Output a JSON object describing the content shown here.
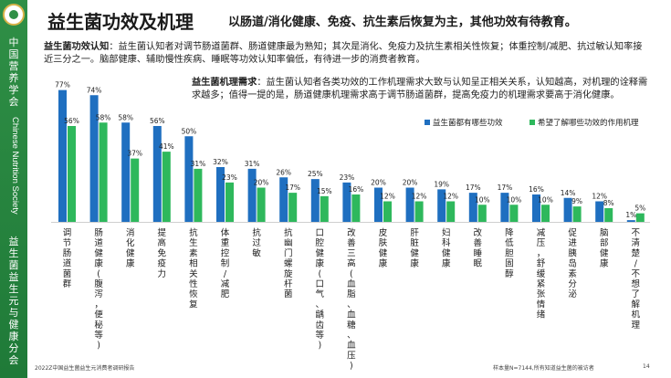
{
  "sidebar": {
    "org": "中国营养学会",
    "org_en": "Chinese Nutrition Society",
    "branch": "益生菌益生元与健康分会"
  },
  "header": {
    "title": "益生菌功效及机理",
    "subtitle": "以肠道/消化健康、免疫、抗生素后恢复为主，其他功效有待教育。"
  },
  "para1": {
    "lead": "益生菌功效认知",
    "text": "：益生菌认知者对调节肠道菌群、肠道健康最为熟知；其次是消化、免疫力及抗生素相关性恢复；体重控制/减肥、抗过敏认知率接近三分之一。脑部健康、辅助慢性疾病、睡眠等功效认知率偏低，有待进一步的消费者教育。"
  },
  "para2": {
    "lead": "益生菌机理需求",
    "text": "：益生菌认知者各类功效的工作机理需求大致与认知呈正相关关系，认知越高，对机理的诠释需求越多；值得一提的是，肠道健康机理需求高于调节肠道菌群，提高免疫力的机理需求要高于消化健康。"
  },
  "colors": {
    "primary": "#1f6fc0",
    "secondary": "#2eb85c"
  },
  "chart_data": {
    "type": "bar",
    "categories": [
      "调节肠道菌群",
      "肠道健康(腹泻，便秘等)",
      "消化健康",
      "提高免疫力",
      "抗生素相关性恢复",
      "体重控制/减肥",
      "抗过敏",
      "抗幽门螺旋杆菌",
      "口腔健康(口气、龋齿等)",
      "改善三高(血脂、血糖、血压)",
      "皮肤健康",
      "肝脏健康",
      "妇科健康",
      "改善睡眠",
      "降低胆固醇",
      "减压，舒缓紧张情绪",
      "促进胰岛素分泌",
      "脑部健康",
      "不清楚/不想了解机理"
    ],
    "series": [
      {
        "name": "益生菌都有哪些功效",
        "values": [
          77,
          74,
          58,
          56,
          50,
          32,
          31,
          26,
          25,
          23,
          20,
          20,
          19,
          17,
          17,
          16,
          14,
          12,
          1
        ]
      },
      {
        "name": "希望了解哪些功效的作用机理",
        "values": [
          56,
          58,
          37,
          41,
          31,
          23,
          20,
          17,
          15,
          16,
          12,
          12,
          12,
          10,
          10,
          10,
          9,
          8,
          5
        ]
      }
    ],
    "value_labels": [
      [
        "77%",
        "74%",
        "58%",
        "56%",
        "50%",
        "32%",
        "31%",
        "26%",
        "25%",
        "23%",
        "20%",
        "20%",
        "19%",
        "17%",
        "17%",
        "16%",
        "14%",
        "12%",
        "1%"
      ],
      [
        "56%",
        "58%",
        "37%",
        "41%",
        "31%",
        "23%",
        "20%",
        "17%",
        "15%",
        "16%",
        "12%",
        "12%",
        "12%",
        "10%",
        "10%",
        "10%",
        "9%",
        "8%",
        "5%"
      ]
    ],
    "ylim": [
      0,
      80
    ],
    "legend_position": "top-right",
    "grid": false
  },
  "footer": {
    "left": "2022Z中国益生菌益生元消费者调研报告",
    "right": "样本量N=7144,所有知道益生菌的被访者",
    "page": "14"
  }
}
